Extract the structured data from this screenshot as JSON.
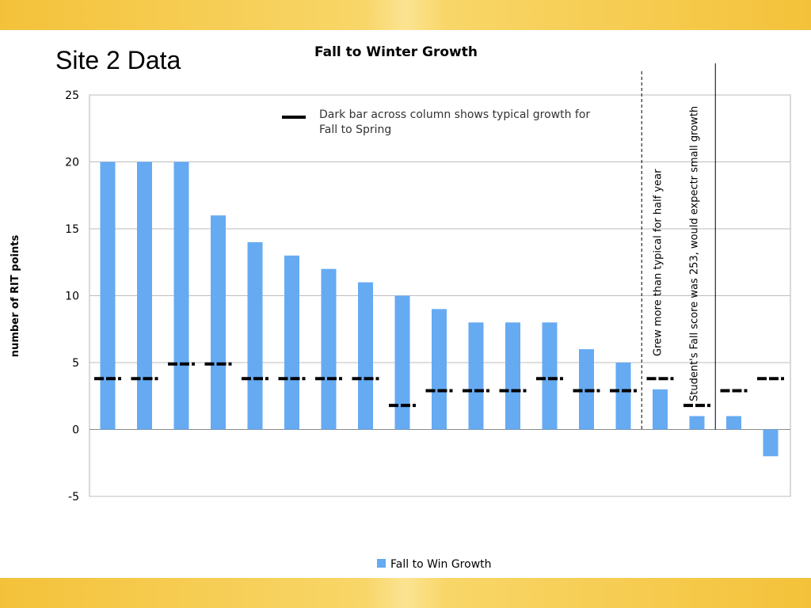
{
  "slide": {
    "title": "Site 2 Data",
    "band_color": "#f6c744"
  },
  "chart_data": {
    "type": "bar",
    "title": "Fall to Winter Growth",
    "ylabel": "number of RIT points",
    "xlabel": "",
    "ylim": [
      -5,
      25
    ],
    "yticks": [
      -5,
      0,
      5,
      10,
      15,
      20,
      25
    ],
    "grid": true,
    "bar_color": "#66aaf2",
    "typical_marker_color": "#000000",
    "series": [
      {
        "name": "Fall to Win Growth",
        "values": [
          20,
          20,
          20,
          16,
          14,
          13,
          12,
          11,
          10,
          9,
          8,
          8,
          8,
          6,
          5,
          3,
          1,
          1,
          -2
        ]
      }
    ],
    "typical_growth": [
      3.8,
      3.8,
      4.9,
      4.9,
      3.8,
      3.8,
      3.8,
      3.8,
      1.8,
      2.9,
      2.9,
      2.9,
      3.8,
      2.9,
      2.9,
      3.8,
      1.8,
      2.9,
      3.8
    ],
    "legend": {
      "entry": "Fall to Win Growth",
      "placement": "bottom"
    },
    "annotations": {
      "marker_note": "Dark bar across column shows typical growth for\nFall to Spring",
      "dashed_divider_note": "Grew more than typical for half year",
      "solid_divider_note": "Student's Fall score was 253, would expectr small growth"
    },
    "dashed_divider_after_index": 14,
    "solid_divider_after_index": 16
  }
}
